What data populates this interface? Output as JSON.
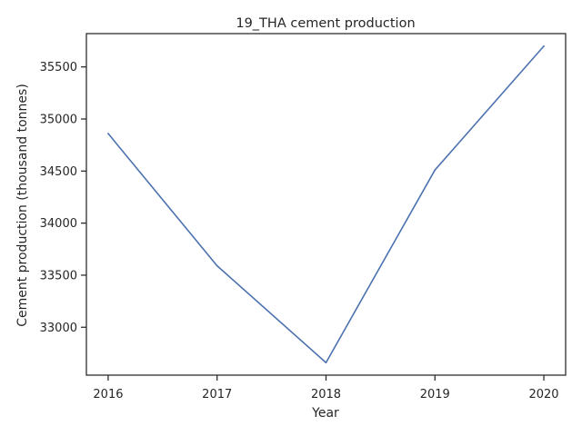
{
  "chart_data": {
    "type": "line",
    "title": "19_THA cement production",
    "xlabel": "Year",
    "ylabel": "Cement production (thousand tonnes)",
    "x": [
      2016,
      2017,
      2018,
      2019,
      2020
    ],
    "series": [
      {
        "values": [
          34860,
          33590,
          32660,
          34510,
          35700
        ],
        "color": "#4c72b0"
      }
    ],
    "xticks": [
      "2016",
      "2017",
      "2018",
      "2019",
      "2020"
    ],
    "yticks": [
      "33000",
      "33500",
      "34000",
      "34500",
      "35000",
      "35500"
    ],
    "xlim": [
      2015.8,
      2020.2
    ],
    "ylim": [
      32540,
      35820
    ],
    "grid": false,
    "legend": false
  }
}
